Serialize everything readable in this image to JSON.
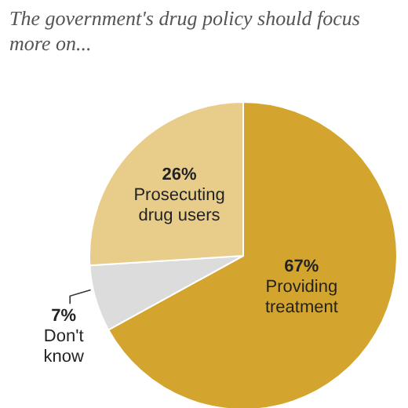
{
  "chart_data": {
    "type": "pie",
    "title": "The government's drug policy should focus more on...",
    "categories": [
      "Providing treatment",
      "Don't know",
      "Prosecuting drug users"
    ],
    "values": [
      67,
      7,
      26
    ],
    "value_labels": [
      "67%",
      "7%",
      "26%"
    ],
    "colors": [
      "#d3a52f",
      "#dcdcdc",
      "#e8cd8a"
    ]
  }
}
